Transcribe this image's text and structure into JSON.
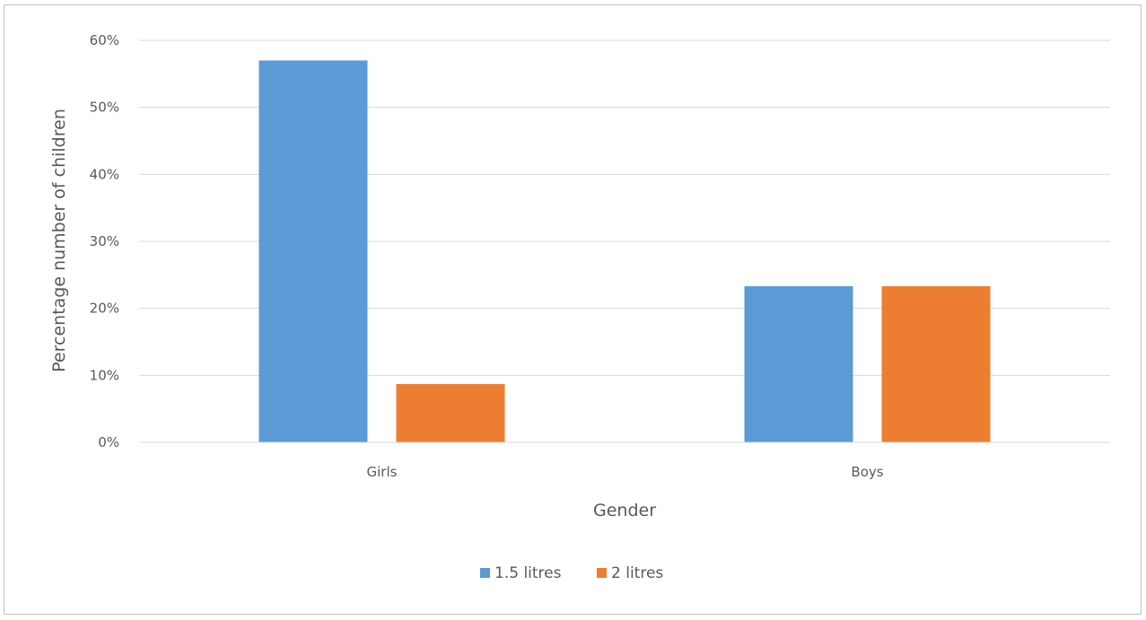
{
  "chart_data": {
    "type": "bar",
    "categories": [
      "Girls",
      "Boys"
    ],
    "series": [
      {
        "name": "1.5 litres",
        "color": "#5b9bd5",
        "values": [
          57,
          23.3
        ]
      },
      {
        "name": "2 litres",
        "color": "#ed7d31",
        "values": [
          8.7,
          23.3
        ]
      }
    ],
    "xlabel": "Gender",
    "ylabel": "Percentage number of children",
    "ylim": [
      0,
      60
    ],
    "yticks": [
      0,
      10,
      20,
      30,
      40,
      50,
      60
    ],
    "ytick_labels": [
      "0%",
      "10%",
      "20%",
      "30%",
      "40%",
      "50%",
      "60%"
    ],
    "grid": true,
    "legend_position": "bottom"
  }
}
